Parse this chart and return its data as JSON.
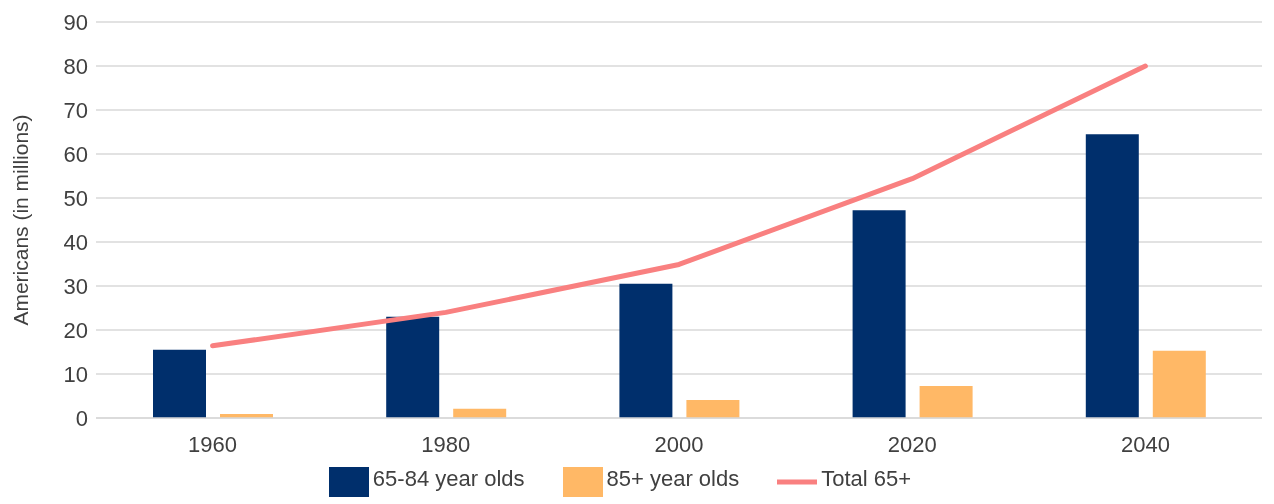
{
  "chart_data": {
    "type": "bar",
    "ylabel": "Americans (in millions)",
    "categories": [
      "1960",
      "1980",
      "2000",
      "2020",
      "2040"
    ],
    "series": [
      {
        "name": "65-84 year olds",
        "color": "#002f6c",
        "values": [
          15.5,
          23.0,
          30.5,
          47.2,
          64.5
        ]
      },
      {
        "name": "85+ year olds",
        "color": "#ffb866",
        "values": [
          0.9,
          2.1,
          4.1,
          7.3,
          15.3
        ]
      },
      {
        "name": "Total 65+",
        "type": "line",
        "color": "#f98080",
        "values": [
          16.4,
          24.0,
          34.9,
          54.4,
          80.0
        ]
      }
    ],
    "ylim": [
      0,
      90
    ],
    "yticks": [
      0,
      10,
      20,
      30,
      40,
      50,
      60,
      70,
      80,
      90
    ],
    "grid": "y",
    "legend": "bottom",
    "marker": "none",
    "line_style": "solid"
  }
}
